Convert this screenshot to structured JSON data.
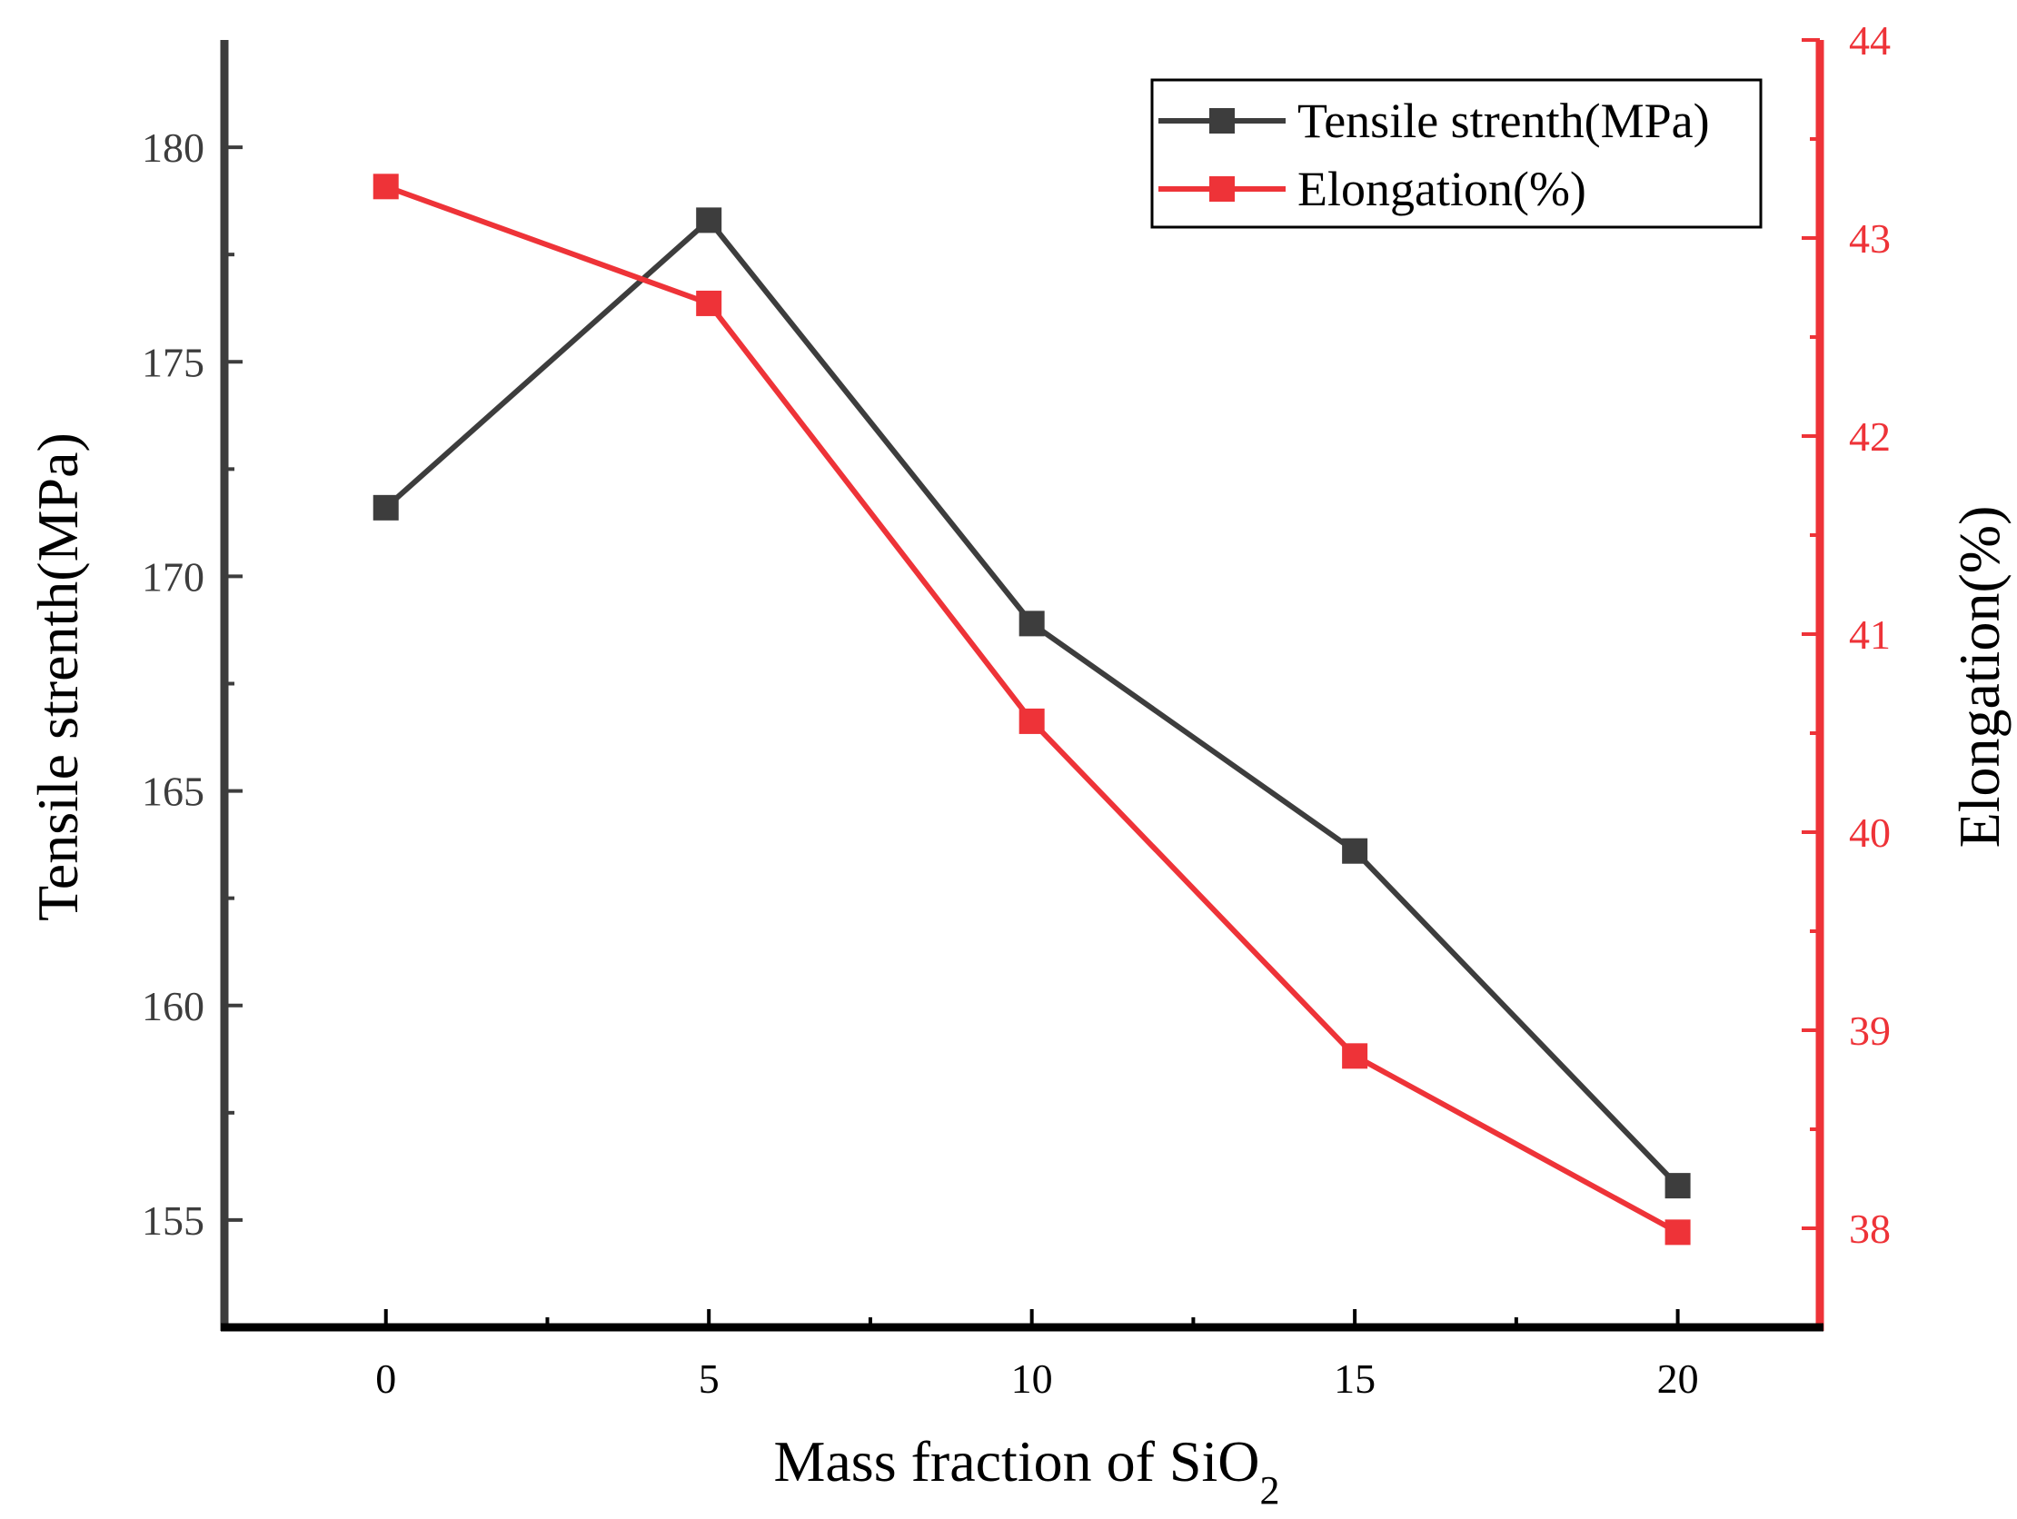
{
  "chart_data": {
    "type": "line",
    "title": "",
    "xlabel_main": "Mass fraction of SiO",
    "xlabel_sub": "2",
    "ylabel_left": "Tensile strenth(MPa)",
    "ylabel_right": "Elongation(%)",
    "x": [
      0,
      5,
      10,
      15,
      20
    ],
    "xticks": [
      "0",
      "5",
      "10",
      "15",
      "20"
    ],
    "xlim": [
      -2.5,
      22.2
    ],
    "ylim_left": [
      152.5,
      182.5
    ],
    "yticks_left": [
      "155",
      "160",
      "165",
      "170",
      "175",
      "180"
    ],
    "ylim_right": [
      37.5,
      44
    ],
    "yticks_right": [
      "38",
      "39",
      "40",
      "41",
      "42",
      "43",
      "44"
    ],
    "grid": false,
    "legend_position": "top-right",
    "series": [
      {
        "name": "Tensile strenth(MPa)",
        "axis": "left",
        "color": "#3d3d3d",
        "values": [
          171.6,
          178.3,
          168.9,
          163.6,
          155.8
        ]
      },
      {
        "name": "Elongation(%)",
        "axis": "right",
        "color": "#ee3338",
        "values": [
          43.26,
          42.67,
          40.56,
          38.87,
          37.98
        ]
      }
    ]
  }
}
